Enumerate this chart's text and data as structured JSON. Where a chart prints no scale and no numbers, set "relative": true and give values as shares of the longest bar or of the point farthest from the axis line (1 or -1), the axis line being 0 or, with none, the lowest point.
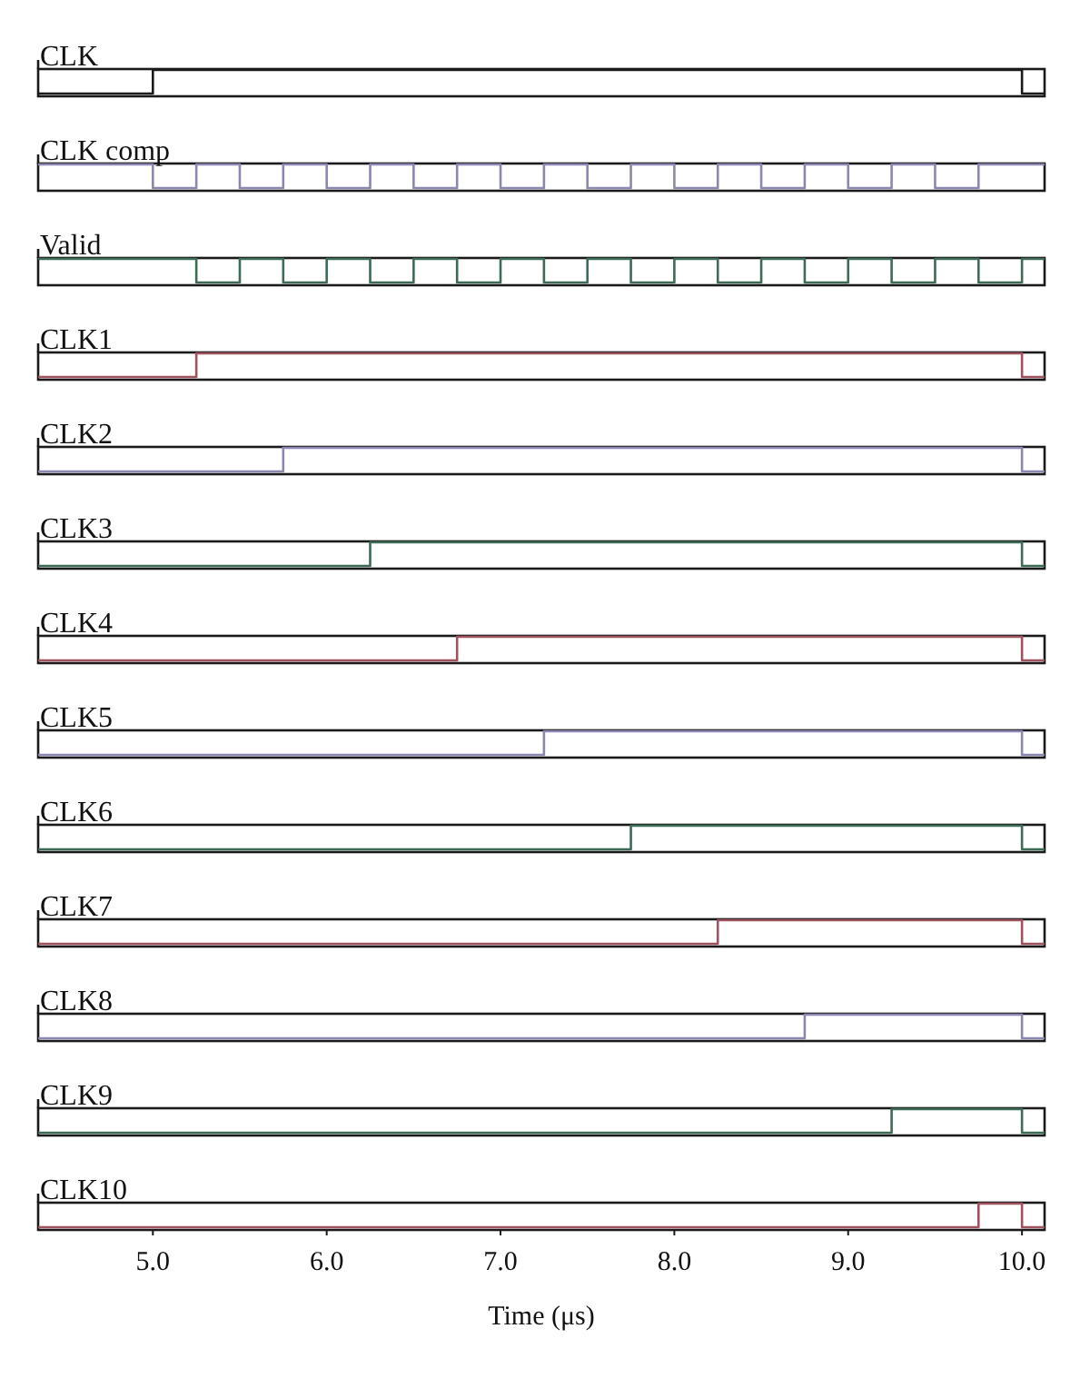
{
  "chart_data": [
    {
      "type": "step",
      "relative": true,
      "xlim": [
        4.34,
        10.13
      ],
      "tick_labels": false,
      "x": [
        4.34,
        5.0,
        10.0,
        10.13
      ],
      "series": [
        {
          "name": "CLK",
          "color": "#1a1a1a",
          "values": [
            0,
            1,
            0,
            0
          ]
        }
      ]
    },
    {
      "type": "step",
      "relative": true,
      "xlim": [
        4.34,
        10.13
      ],
      "tick_labels": false,
      "x": [
        4.34,
        5.0,
        5.25,
        5.5,
        5.75,
        6.0,
        6.25,
        6.5,
        6.75,
        7.0,
        7.25,
        7.5,
        7.75,
        8.0,
        8.25,
        8.5,
        8.75,
        9.0,
        9.25,
        9.5,
        9.75,
        10.13
      ],
      "series": [
        {
          "name": "CLK comp",
          "color": "#8a88b0",
          "values": [
            1,
            0,
            1,
            0,
            1,
            0,
            1,
            0,
            1,
            0,
            1,
            0,
            1,
            0,
            1,
            0,
            1,
            0,
            1,
            0,
            1,
            1
          ]
        }
      ]
    },
    {
      "type": "step",
      "relative": true,
      "xlim": [
        4.34,
        10.13
      ],
      "tick_labels": false,
      "x": [
        4.34,
        5.25,
        5.5,
        5.75,
        6.0,
        6.25,
        6.5,
        6.75,
        7.0,
        7.25,
        7.5,
        7.75,
        8.0,
        8.25,
        8.5,
        8.75,
        9.0,
        9.25,
        9.5,
        9.75,
        10.0,
        10.13
      ],
      "series": [
        {
          "name": "Valid",
          "color": "#3e6b55",
          "values": [
            1,
            0,
            1,
            0,
            1,
            0,
            1,
            0,
            1,
            0,
            1,
            0,
            1,
            0,
            1,
            0,
            1,
            0,
            1,
            0,
            1,
            1
          ]
        }
      ]
    },
    {
      "type": "step",
      "relative": true,
      "xlim": [
        4.34,
        10.13
      ],
      "tick_labels": false,
      "x": [
        4.34,
        5.25,
        10.0,
        10.13
      ],
      "series": [
        {
          "name": "CLK1",
          "color": "#a0525f",
          "values": [
            0,
            1,
            0,
            0
          ]
        }
      ]
    },
    {
      "type": "step",
      "relative": true,
      "xlim": [
        4.34,
        10.13
      ],
      "tick_labels": false,
      "x": [
        4.34,
        5.75,
        10.0,
        10.13
      ],
      "series": [
        {
          "name": "CLK2",
          "color": "#8a88b0",
          "values": [
            0,
            1,
            0,
            0
          ]
        }
      ]
    },
    {
      "type": "step",
      "relative": true,
      "xlim": [
        4.34,
        10.13
      ],
      "tick_labels": false,
      "x": [
        4.34,
        6.25,
        10.0,
        10.13
      ],
      "series": [
        {
          "name": "CLK3",
          "color": "#3e6b55",
          "values": [
            0,
            1,
            0,
            0
          ]
        }
      ]
    },
    {
      "type": "step",
      "relative": true,
      "xlim": [
        4.34,
        10.13
      ],
      "tick_labels": false,
      "x": [
        4.34,
        6.75,
        10.0,
        10.13
      ],
      "series": [
        {
          "name": "CLK4",
          "color": "#a0525f",
          "values": [
            0,
            1,
            0,
            0
          ]
        }
      ]
    },
    {
      "type": "step",
      "relative": true,
      "xlim": [
        4.34,
        10.13
      ],
      "tick_labels": false,
      "x": [
        4.34,
        7.25,
        10.0,
        10.13
      ],
      "series": [
        {
          "name": "CLK5",
          "color": "#8a88b0",
          "values": [
            0,
            1,
            0,
            0
          ]
        }
      ]
    },
    {
      "type": "step",
      "relative": true,
      "xlim": [
        4.34,
        10.13
      ],
      "tick_labels": false,
      "x": [
        4.34,
        7.75,
        10.0,
        10.13
      ],
      "series": [
        {
          "name": "CLK6",
          "color": "#3e6b55",
          "values": [
            0,
            1,
            0,
            0
          ]
        }
      ]
    },
    {
      "type": "step",
      "relative": true,
      "xlim": [
        4.34,
        10.13
      ],
      "tick_labels": false,
      "x": [
        4.34,
        8.25,
        10.0,
        10.13
      ],
      "series": [
        {
          "name": "CLK7",
          "color": "#a0525f",
          "values": [
            0,
            1,
            0,
            0
          ]
        }
      ]
    },
    {
      "type": "step",
      "relative": true,
      "xlim": [
        4.34,
        10.13
      ],
      "tick_labels": false,
      "x": [
        4.34,
        8.75,
        10.0,
        10.13
      ],
      "series": [
        {
          "name": "CLK8",
          "color": "#8a88b0",
          "values": [
            0,
            1,
            0,
            0
          ]
        }
      ]
    },
    {
      "type": "step",
      "relative": true,
      "xlim": [
        4.34,
        10.13
      ],
      "tick_labels": false,
      "x": [
        4.34,
        9.25,
        10.0,
        10.13
      ],
      "series": [
        {
          "name": "CLK9",
          "color": "#3e6b55",
          "values": [
            0,
            1,
            0,
            0
          ]
        }
      ]
    },
    {
      "type": "step",
      "relative": true,
      "xlim": [
        4.34,
        10.13
      ],
      "tick_labels": "x",
      "xlabel": "Time (μs)",
      "x": [
        4.34,
        9.75,
        10.0,
        10.13
      ],
      "xticks": [
        {
          "value": 5,
          "label": "5.0"
        },
        {
          "value": 6,
          "label": "6.0"
        },
        {
          "value": 7,
          "label": "7.0"
        },
        {
          "value": 8,
          "label": "8.0"
        },
        {
          "value": 9,
          "label": "9.0"
        },
        {
          "value": 10,
          "label": "10.0"
        }
      ],
      "series": [
        {
          "name": "CLK10",
          "color": "#a0525f",
          "values": [
            0,
            1,
            0,
            0
          ]
        }
      ]
    }
  ]
}
